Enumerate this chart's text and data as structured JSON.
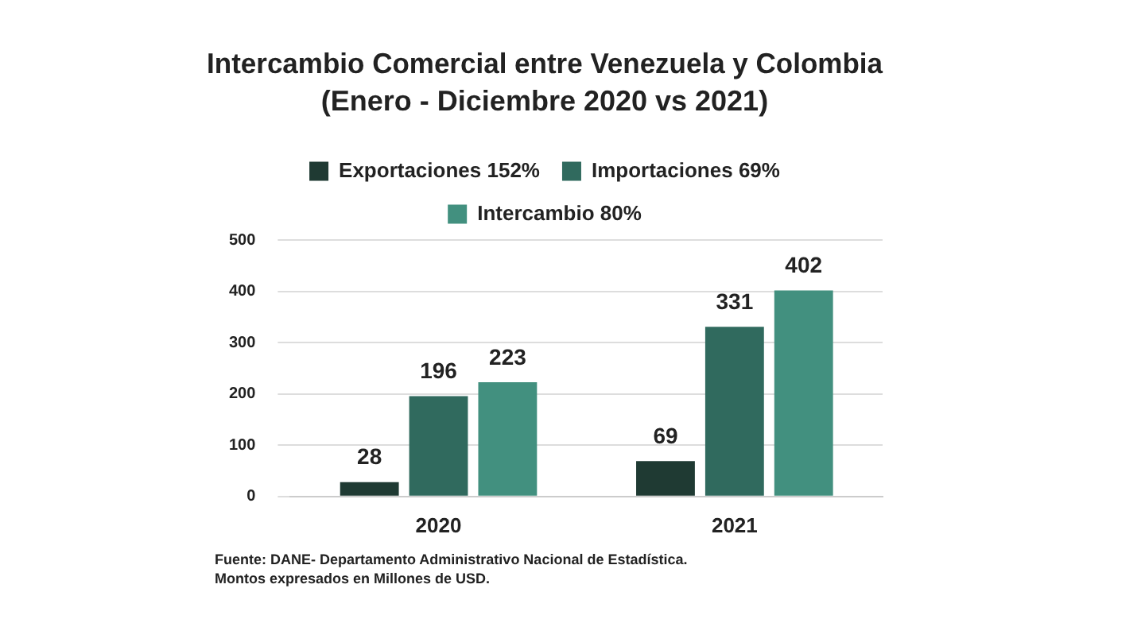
{
  "chart_data": {
    "type": "bar",
    "title": "Intercambio Comercial entre Venezuela y Colombia",
    "subtitle": "(Enero - Diciembre 2020 vs 2021)",
    "categories": [
      "2020",
      "2021"
    ],
    "series": [
      {
        "name": "Exportaciones 152%",
        "color": "#1f3a33",
        "values": [
          28,
          69
        ]
      },
      {
        "name": "Importaciones 69%",
        "color": "#306a5e",
        "values": [
          196,
          331
        ]
      },
      {
        "name": "Intercambio 80%",
        "color": "#42907f",
        "values": [
          223,
          402
        ]
      }
    ],
    "ylim": [
      0,
      500
    ],
    "yticks": [
      0,
      100,
      200,
      300,
      400,
      500
    ],
    "grid": "y",
    "legend": "top",
    "data_labels": true,
    "annotations": [
      "Fuente: DANE- Departamento Administrativo Nacional de Estadística.",
      "Montos expresados en Millones de USD."
    ]
  }
}
